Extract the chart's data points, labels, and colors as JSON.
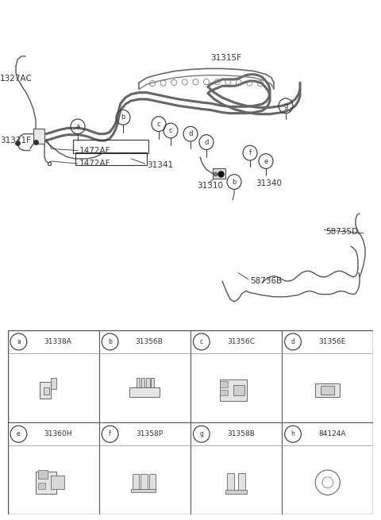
{
  "bg_color": "#ffffff",
  "line_color": "#555555",
  "text_color": "#333333",
  "parts_top": [
    "31338A",
    "31356B",
    "31356C",
    "31356E"
  ],
  "parts_bot": [
    "31360H",
    "31358P",
    "31358B",
    "84124A"
  ],
  "letters_top": [
    "a",
    "b",
    "c",
    "d"
  ],
  "letters_bot": [
    "e",
    "f",
    "g",
    "h"
  ]
}
